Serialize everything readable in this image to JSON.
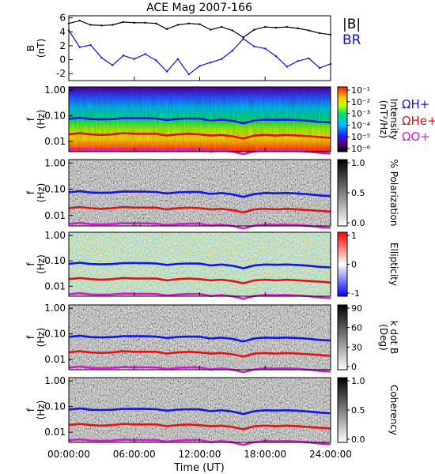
{
  "title": "ACE Mag 2007-166",
  "colors": {
    "bmag": "#000000",
    "br": "#1010e0",
    "hplus": "#1414e6",
    "heplus": "#e01414",
    "oplus": "#e014d8"
  },
  "chart_data": [
    {
      "id": "field",
      "type": "line",
      "ylabel": "B (nT)",
      "yticks": [
        "6",
        "4",
        "2",
        "0",
        "-2"
      ],
      "ylim": [
        -3,
        6.3
      ],
      "x": [
        0,
        1,
        2,
        3,
        4,
        5,
        6,
        7,
        8,
        9,
        10,
        11,
        12,
        13,
        14,
        15,
        16,
        17,
        18,
        19,
        20,
        21,
        22,
        23,
        24
      ],
      "series": [
        {
          "name": "|B|",
          "color": "bmag",
          "values": [
            5.2,
            5.6,
            5.0,
            4.9,
            5.0,
            5.4,
            5.3,
            5.3,
            5.2,
            4.4,
            5.0,
            5.2,
            5.1,
            4.3,
            4.7,
            4.2,
            3.2,
            4.3,
            4.7,
            4.6,
            4.7,
            4.5,
            4.2,
            3.8,
            3.6
          ]
        },
        {
          "name": "BR",
          "color": "br",
          "values": [
            4.2,
            1.8,
            2.1,
            0.3,
            -0.8,
            0.6,
            0.1,
            0.8,
            -0.1,
            -1.7,
            0.1,
            -2.1,
            -0.9,
            -0.4,
            0.1,
            1.3,
            3.0,
            1.9,
            1.6,
            0.5,
            -1.0,
            -0.2,
            0.2,
            -1.2,
            -0.6
          ]
        }
      ]
    },
    {
      "id": "intensity",
      "type": "heatmap",
      "ylabel": "f (Hz)",
      "yticks": [
        "1.00",
        "0.10",
        "0.01"
      ],
      "colorbar": {
        "ticks": [
          "10⁻¹",
          "10⁻²",
          "10⁻³",
          "10⁻⁴",
          "10⁻⁵",
          "10⁻⁶"
        ],
        "label": "Intensity (nT²/Hz)"
      }
    },
    {
      "id": "polarization",
      "type": "heatmap",
      "ylabel": "f (Hz)",
      "yticks": [
        "1.00",
        "0.10",
        "0.01"
      ],
      "colorbar": {
        "ticks": [
          "1.0",
          "0.5",
          "0.0"
        ],
        "label": "% Polarization"
      }
    },
    {
      "id": "ellipticity",
      "type": "heatmap",
      "ylabel": "f (Hz)",
      "yticks": [
        "1.00",
        "0.10",
        "0.01"
      ],
      "colorbar": {
        "ticks": [
          "1",
          "0",
          "-1"
        ],
        "label": "Ellipticity"
      }
    },
    {
      "id": "kdotb",
      "type": "heatmap",
      "ylabel": "f (Hz)",
      "yticks": [
        "1.00",
        "0.10",
        "0.01"
      ],
      "colorbar": {
        "ticks": [
          "90",
          "60",
          "30",
          "0"
        ],
        "label": "k dot B (Deg)"
      }
    },
    {
      "id": "coherency",
      "type": "heatmap",
      "ylabel": "f (Hz)",
      "yticks": [
        "1.00",
        "0.10",
        "0.01"
      ],
      "colorbar": {
        "ticks": [
          "1.0",
          "0.5",
          "0.0"
        ],
        "label": "Coherency"
      }
    }
  ],
  "gyrofrequencies": {
    "x": [
      0,
      1,
      2,
      3,
      4,
      5,
      6,
      7,
      8,
      9,
      10,
      11,
      12,
      13,
      14,
      15,
      16,
      17,
      18,
      19,
      20,
      21,
      22,
      23,
      24
    ],
    "hplus": [
      0.076,
      0.085,
      0.075,
      0.073,
      0.075,
      0.082,
      0.081,
      0.081,
      0.079,
      0.069,
      0.076,
      0.079,
      0.078,
      0.066,
      0.072,
      0.064,
      0.051,
      0.066,
      0.072,
      0.07,
      0.072,
      0.069,
      0.064,
      0.058,
      0.055
    ],
    "heplus": [
      0.019,
      0.021,
      0.019,
      0.018,
      0.019,
      0.021,
      0.02,
      0.02,
      0.02,
      0.017,
      0.019,
      0.02,
      0.019,
      0.017,
      0.018,
      0.016,
      0.013,
      0.017,
      0.018,
      0.017,
      0.018,
      0.017,
      0.016,
      0.015,
      0.014
    ],
    "oplus": [
      0.0048,
      0.0053,
      0.0047,
      0.0046,
      0.0047,
      0.0051,
      0.005,
      0.005,
      0.0049,
      0.0043,
      0.0047,
      0.0049,
      0.0049,
      0.0041,
      0.0045,
      0.004,
      0.0032,
      0.0041,
      0.0045,
      0.0044,
      0.0045,
      0.0043,
      0.004,
      0.0036,
      0.0034
    ],
    "labels": {
      "hplus": "ΩH+",
      "heplus": "ΩHe+",
      "oplus": "ΩO+"
    }
  },
  "legend": {
    "bmag": "|B|",
    "br": "BR"
  },
  "xaxis": {
    "ticks": [
      "00:00:00",
      "06:00:00",
      "12:00:00",
      "18:00:00",
      "24:00:00"
    ],
    "label": "Time (UT)"
  }
}
